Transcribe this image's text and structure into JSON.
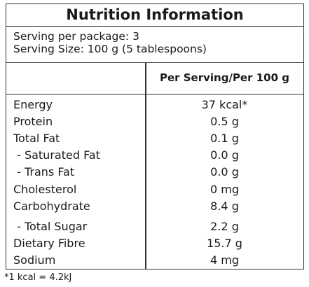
{
  "title": "Nutrition Information",
  "serving": {
    "per_package": "Serving per package: 3",
    "size": "Serving Size: 100 g (5 tablespoons)"
  },
  "column_header": "Per Serving/Per 100 g",
  "rows": [
    {
      "name": "Energy",
      "value": "37 kcal*"
    },
    {
      "name": "Protein",
      "value": "0.5 g"
    },
    {
      "name": "Total Fat",
      "value": "0.1 g"
    },
    {
      "name": " - Saturated Fat",
      "value": "0.0 g"
    },
    {
      "name": " - Trans Fat",
      "value": "0.0 g"
    },
    {
      "name": "Cholesterol",
      "value": "0 mg"
    },
    {
      "name": "Carbohydrate",
      "value": "8.4 g"
    },
    {
      "name": " - Total Sugar",
      "value": "2.2 g"
    },
    {
      "name": "Dietary Fibre",
      "value": "15.7 g"
    },
    {
      "name": "Sodium",
      "value": "4 mg"
    }
  ],
  "footnote": "*1 kcal = 4.2kJ"
}
